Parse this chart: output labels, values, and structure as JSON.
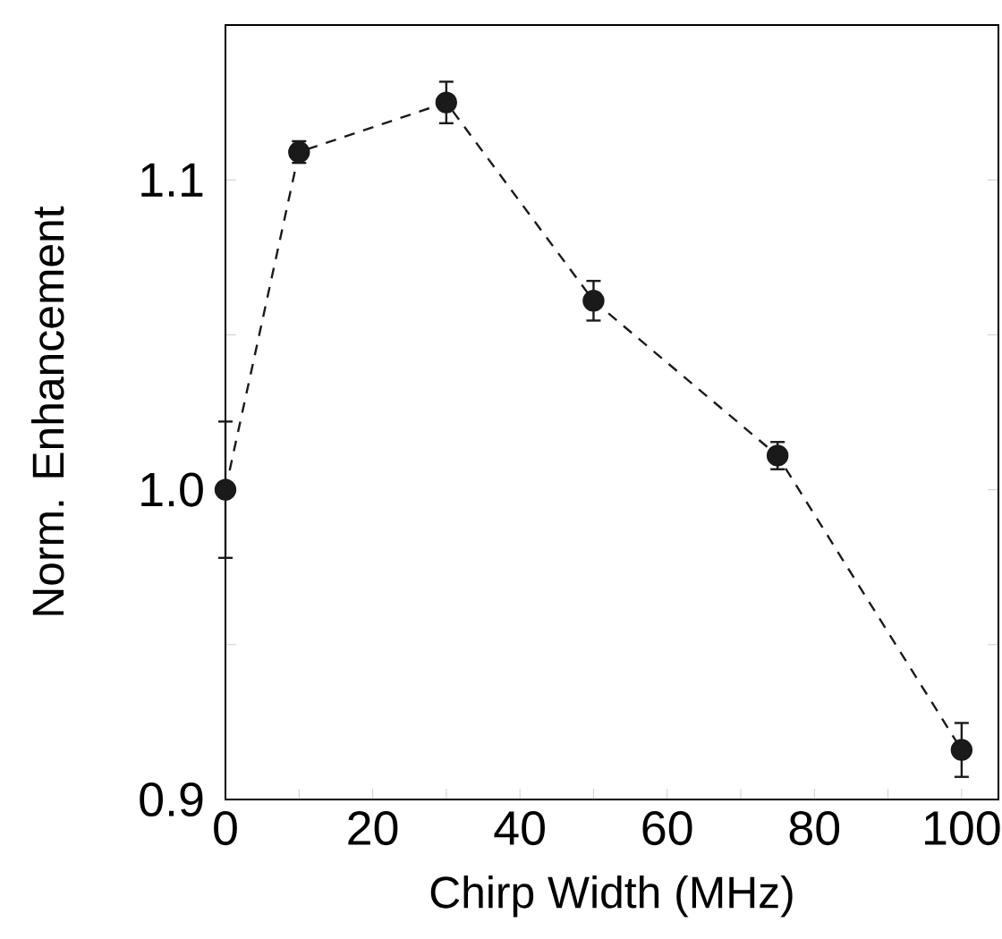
{
  "chart_data": {
    "type": "line",
    "xlabel": "Chirp Width (MHz)",
    "ylabel": "Norm. Enhancement",
    "x": [
      0,
      10,
      30,
      50,
      75,
      100
    ],
    "values": [
      1.0,
      1.109,
      1.125,
      1.061,
      1.011,
      0.916
    ],
    "errors": [
      0.022,
      0.0035,
      0.0067,
      0.0064,
      0.0044,
      0.0087
    ],
    "color": "#1a1a1a",
    "marker": "circle",
    "line_style": "dashed",
    "xlim": [
      0,
      105
    ],
    "ylim": [
      0.9,
      1.15
    ],
    "xticks": [
      0,
      {
        "value": 10,
        "label": null
      },
      20,
      {
        "value": 30,
        "label": null
      },
      40,
      {
        "value": 50,
        "label": null
      },
      60,
      {
        "value": 70,
        "label": null
      },
      80,
      {
        "value": 90,
        "label": null
      },
      100
    ],
    "yticks": [
      {
        "value": 0.9,
        "label": "0.9"
      },
      {
        "value": 0.95,
        "label": null
      },
      {
        "value": 1.0,
        "label": "1.0"
      },
      {
        "value": 1.05,
        "label": null
      },
      1.1
    ]
  }
}
